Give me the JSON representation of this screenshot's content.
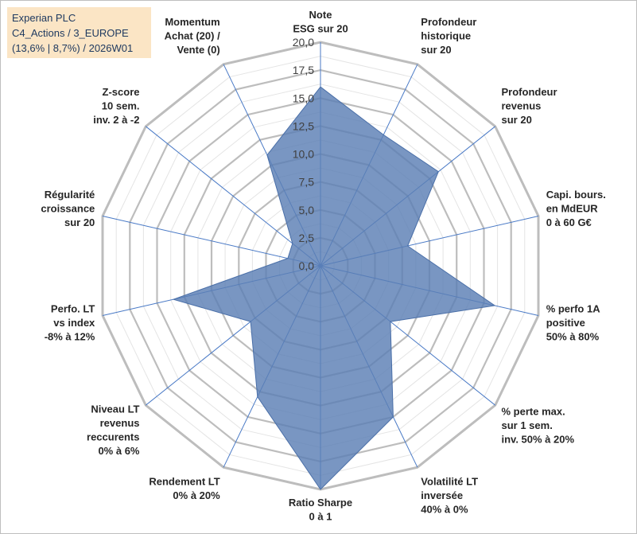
{
  "header": {
    "line1": "Experian PLC",
    "line2": "C4_Actions / 3_EUROPE",
    "line3": "(13,6% | 8,7%) / 2026W01"
  },
  "chart_data": {
    "type": "radar",
    "title": "Experian PLC",
    "rmin": 0,
    "rmax": 20,
    "ticks": [
      "0,0",
      "2,5",
      "5,0",
      "7,5",
      "10,0",
      "12,5",
      "15,0",
      "17,5",
      "20,0"
    ],
    "grid": true,
    "axes": [
      [
        "Note",
        "ESG sur 20"
      ],
      [
        "Profondeur",
        "historique",
        "sur 20"
      ],
      [
        "Profondeur",
        "revenus",
        "sur 20"
      ],
      [
        "Capi. bours.",
        "en MdEUR",
        "0 à 60 G€"
      ],
      [
        "% perfo 1A",
        "positive",
        "50% à 80%"
      ],
      [
        "% perte max.",
        "sur 1 sem.",
        "inv. 50% à 20%"
      ],
      [
        "Volatilité LT",
        "inversée",
        "40% à 0%"
      ],
      [
        "Ratio Sharpe",
        "0 à 1"
      ],
      [
        "Rendement LT",
        "0% à 20%"
      ],
      [
        "Niveau LT",
        "revenus",
        "reccurents",
        "0% à 6%"
      ],
      [
        "Perfo. LT",
        "vs index",
        "-8% à 12%"
      ],
      [
        "Régularité",
        "croissance",
        "sur 20"
      ],
      [
        "Z-score",
        "10 sem.",
        "inv. 2 à -2"
      ],
      [
        "Momentum",
        "Achat (20) /",
        "Vente (0)"
      ]
    ],
    "series": [
      {
        "name": "Experian PLC",
        "values": [
          16,
          13,
          13.5,
          8,
          16,
          8,
          15,
          20,
          13,
          8,
          13.5,
          3,
          3.2,
          11
        ],
        "color": "#5b7fb5"
      }
    ]
  }
}
